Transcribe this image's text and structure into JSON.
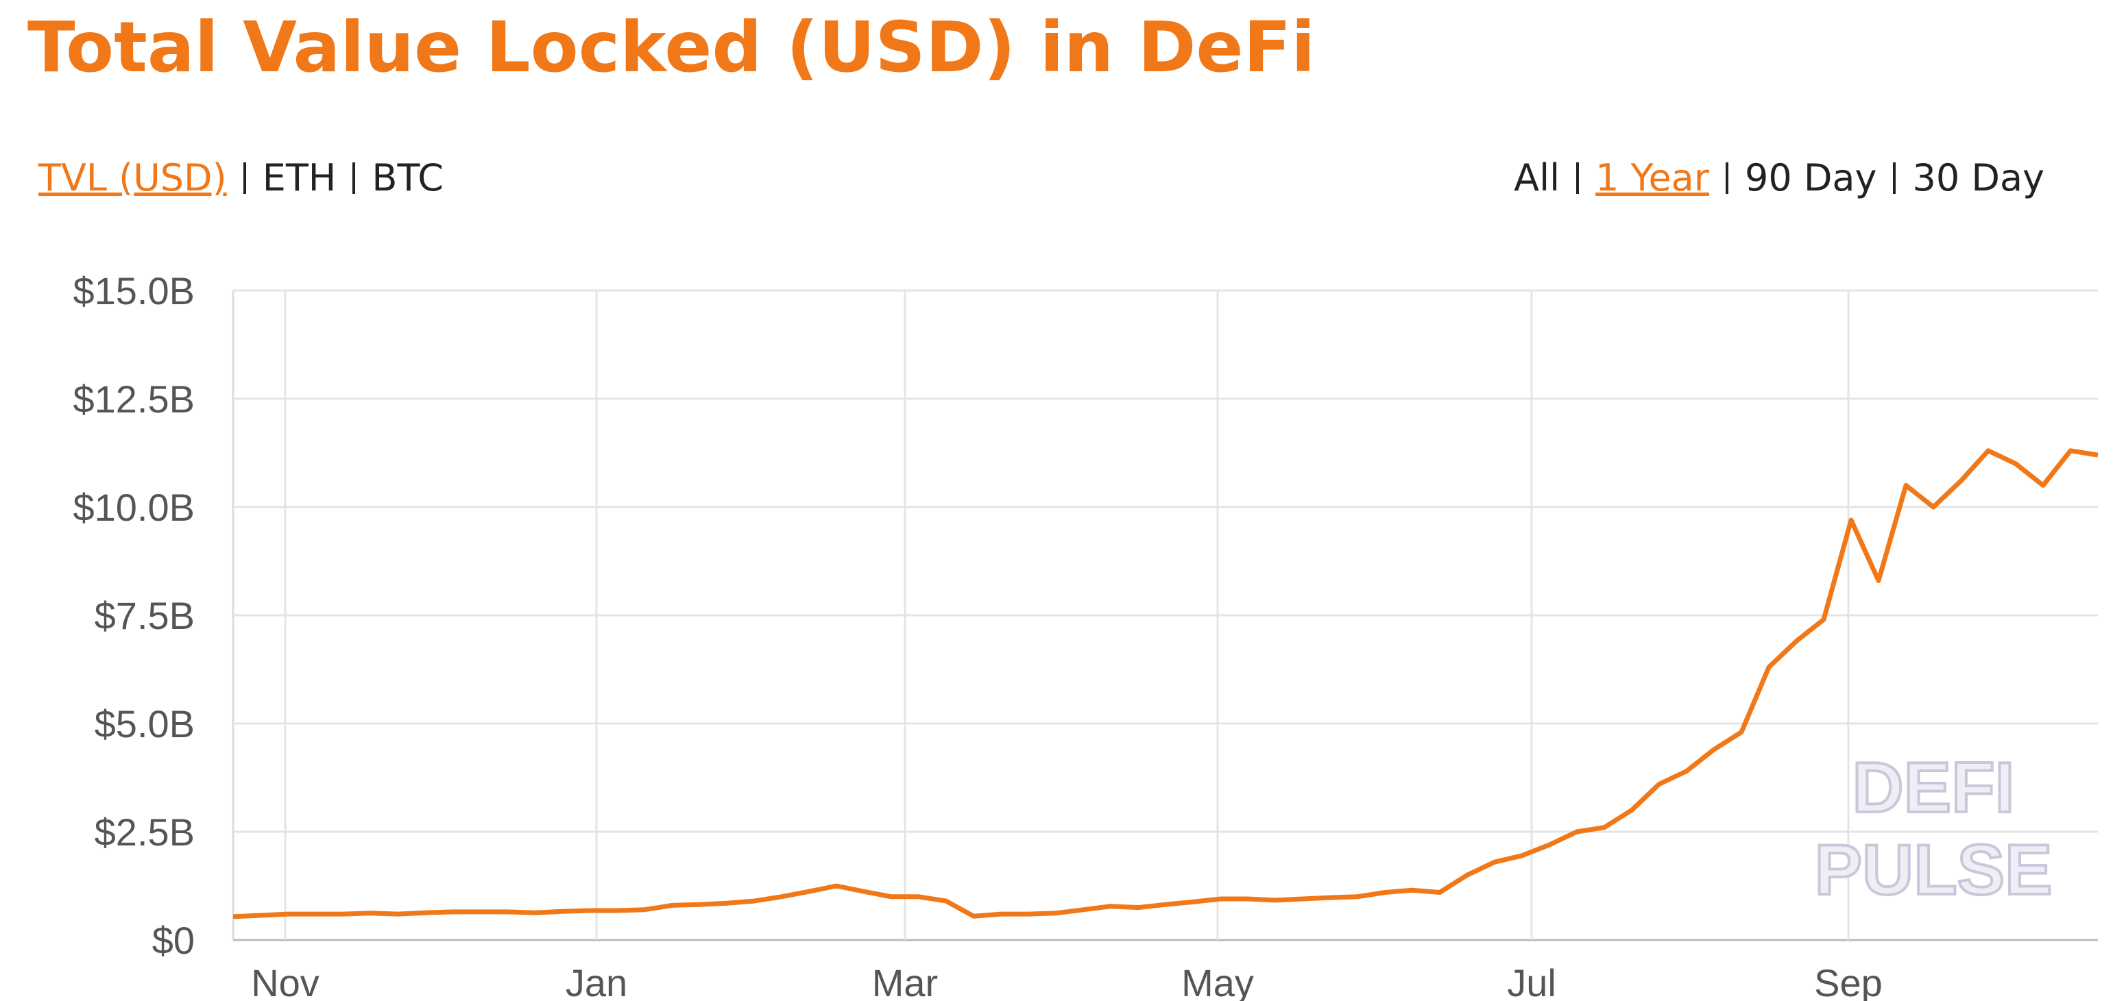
{
  "chart_data": {
    "type": "line",
    "title": "Total Value Locked (USD) in DeFi",
    "nav_left": [
      {
        "label": "TVL (USD)",
        "active": true
      },
      {
        "label": "ETH",
        "active": false
      },
      {
        "label": "BTC",
        "active": false
      }
    ],
    "nav_right": [
      {
        "label": "All",
        "active": false
      },
      {
        "label": "1 Year",
        "active": true
      },
      {
        "label": "90 Day",
        "active": false
      },
      {
        "label": "30 Day",
        "active": false
      }
    ],
    "watermark": [
      "DEFI",
      "PULSE"
    ],
    "series": [
      {
        "name": "TVL (USD)",
        "color": "#f07818",
        "values": [
          0.54,
          0.57,
          0.6,
          0.6,
          0.6,
          0.62,
          0.6,
          0.63,
          0.65,
          0.65,
          0.65,
          0.63,
          0.66,
          0.68,
          0.68,
          0.7,
          0.8,
          0.82,
          0.85,
          0.9,
          1.0,
          1.12,
          1.25,
          1.12,
          1.0,
          1.0,
          0.9,
          0.55,
          0.6,
          0.6,
          0.62,
          0.7,
          0.78,
          0.75,
          0.82,
          0.88,
          0.95,
          0.95,
          0.92,
          0.95,
          0.98,
          1.0,
          1.1,
          1.15,
          1.1,
          1.5,
          1.8,
          1.95,
          2.2,
          2.5,
          2.6,
          3.0,
          3.6,
          3.9,
          4.4,
          4.8,
          6.3,
          6.9,
          7.4,
          9.7,
          8.3,
          10.5,
          10.0,
          10.6,
          11.3,
          11.0,
          10.5,
          11.3,
          11.2
        ]
      }
    ],
    "xlim": [
      0,
      68
    ],
    "xticks": [
      {
        "value": 1.9,
        "label": "Nov"
      },
      {
        "value": 13.25,
        "label": "Jan"
      },
      {
        "value": 24.5,
        "label": "Mar"
      },
      {
        "value": 35.9,
        "label": "May"
      },
      {
        "value": 47.35,
        "label": "Jul"
      },
      {
        "value": 58.9,
        "label": "Sep"
      }
    ],
    "ylim": [
      0,
      15
    ],
    "yticks": [
      {
        "value": 0,
        "label": "$0"
      },
      {
        "value": 2.5,
        "label": "$2.5B"
      },
      {
        "value": 5,
        "label": "$5.0B"
      },
      {
        "value": 7.5,
        "label": "$7.5B"
      },
      {
        "value": 10,
        "label": "$10.0B"
      },
      {
        "value": 12.5,
        "label": "$12.5B"
      },
      {
        "value": 15,
        "label": "$15.0B"
      }
    ],
    "grid": true
  }
}
